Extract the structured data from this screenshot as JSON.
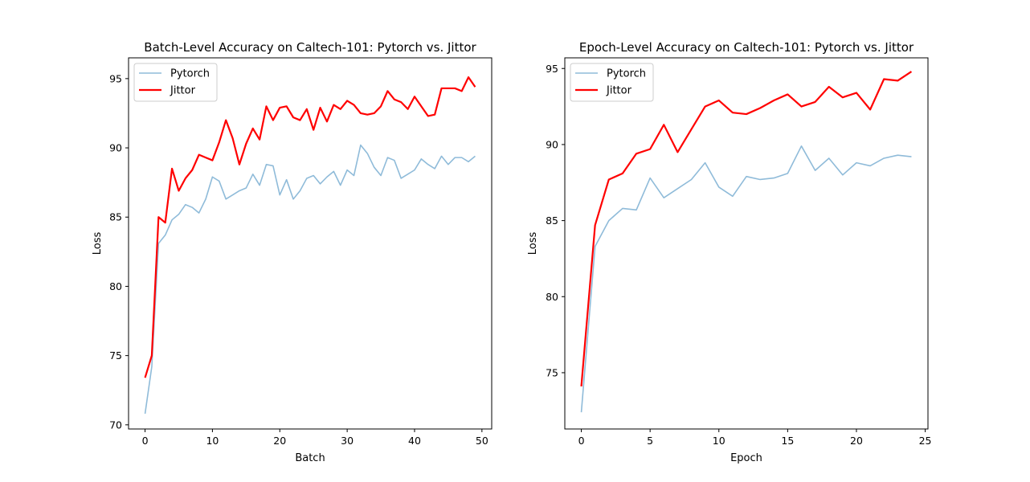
{
  "chart_data": [
    {
      "type": "line",
      "title": "Batch-Level Accuracy on Caltech-101: Pytorch vs. Jittor",
      "xlabel": "Batch",
      "ylabel": "Loss",
      "xlim": [
        -2.45,
        51.45
      ],
      "ylim": [
        69.7,
        96.5
      ],
      "xticks": [
        0,
        10,
        20,
        30,
        40,
        50
      ],
      "yticks": [
        70,
        75,
        80,
        85,
        90,
        95
      ],
      "legend": "top-left",
      "grid": false,
      "series": [
        {
          "name": "Pytorch",
          "color": "#8fbbd9",
          "x": [
            0,
            1,
            2,
            3,
            4,
            5,
            6,
            7,
            8,
            9,
            10,
            11,
            12,
            13,
            14,
            15,
            16,
            17,
            18,
            19,
            20,
            21,
            22,
            23,
            24,
            25,
            26,
            27,
            28,
            29,
            30,
            31,
            32,
            33,
            34,
            35,
            36,
            37,
            38,
            39,
            40,
            41,
            42,
            43,
            44,
            45,
            46,
            47,
            48,
            49
          ],
          "y": [
            70.8,
            74.2,
            83.1,
            83.7,
            84.8,
            85.2,
            85.9,
            85.7,
            85.3,
            86.3,
            87.9,
            87.6,
            86.3,
            86.6,
            86.9,
            87.1,
            88.1,
            87.3,
            88.8,
            88.7,
            86.6,
            87.7,
            86.3,
            86.9,
            87.8,
            88.0,
            87.4,
            87.9,
            88.3,
            87.3,
            88.4,
            88.0,
            90.2,
            89.6,
            88.6,
            88.0,
            89.3,
            89.1,
            87.8,
            88.1,
            88.4,
            89.2,
            88.8,
            88.5,
            89.4,
            88.8,
            89.3,
            89.3,
            89.0,
            89.4
          ]
        },
        {
          "name": "Jittor",
          "color": "#ff0000",
          "x": [
            0,
            1,
            2,
            3,
            4,
            5,
            6,
            7,
            8,
            9,
            10,
            11,
            12,
            13,
            14,
            15,
            16,
            17,
            18,
            19,
            20,
            21,
            22,
            23,
            24,
            25,
            26,
            27,
            28,
            29,
            30,
            31,
            32,
            33,
            34,
            35,
            36,
            37,
            38,
            39,
            40,
            41,
            42,
            43,
            44,
            45,
            46,
            47,
            48,
            49
          ],
          "y": [
            73.4,
            75.0,
            85.0,
            84.6,
            88.5,
            86.9,
            87.8,
            88.4,
            89.5,
            89.3,
            89.1,
            90.4,
            92.0,
            90.7,
            88.8,
            90.3,
            91.4,
            90.6,
            93.0,
            92.0,
            92.9,
            93.0,
            92.2,
            92.0,
            92.8,
            91.3,
            92.9,
            91.9,
            93.1,
            92.8,
            93.4,
            93.1,
            92.5,
            92.4,
            92.5,
            93.0,
            94.1,
            93.5,
            93.3,
            92.8,
            93.7,
            93.0,
            92.3,
            92.4,
            94.3,
            94.3,
            94.3,
            94.1,
            95.1,
            94.4
          ]
        }
      ]
    },
    {
      "type": "line",
      "title": "Epoch-Level Accuracy on Caltech-101: Pytorch vs. Jittor",
      "xlabel": "Epoch",
      "ylabel": "Loss",
      "xlim": [
        -1.2,
        25.2
      ],
      "ylim": [
        71.3,
        95.7
      ],
      "xticks": [
        0,
        5,
        10,
        15,
        20,
        25
      ],
      "yticks": [
        75,
        80,
        85,
        90,
        95
      ],
      "legend": "top-left",
      "grid": false,
      "series": [
        {
          "name": "Pytorch",
          "color": "#8fbbd9",
          "x": [
            0,
            1,
            2,
            3,
            4,
            5,
            6,
            7,
            8,
            9,
            10,
            11,
            12,
            13,
            14,
            15,
            16,
            17,
            18,
            19,
            20,
            21,
            22,
            23,
            24
          ],
          "y": [
            72.4,
            83.3,
            85.0,
            85.8,
            85.7,
            87.8,
            86.5,
            87.1,
            87.7,
            88.8,
            87.2,
            86.6,
            87.9,
            87.7,
            87.8,
            88.1,
            89.9,
            88.3,
            89.1,
            88.0,
            88.8,
            88.6,
            89.1,
            89.3,
            89.2
          ]
        },
        {
          "name": "Jittor",
          "color": "#ff0000",
          "x": [
            0,
            1,
            2,
            3,
            4,
            5,
            6,
            7,
            8,
            9,
            10,
            11,
            12,
            13,
            14,
            15,
            16,
            17,
            18,
            19,
            20,
            21,
            22,
            23,
            24
          ],
          "y": [
            74.1,
            84.7,
            87.7,
            88.1,
            89.4,
            89.7,
            91.3,
            89.5,
            91.0,
            92.5,
            92.9,
            92.1,
            92.0,
            92.4,
            92.9,
            93.3,
            92.5,
            92.8,
            93.8,
            93.1,
            93.4,
            92.3,
            94.3,
            94.2,
            94.8
          ]
        }
      ]
    }
  ]
}
